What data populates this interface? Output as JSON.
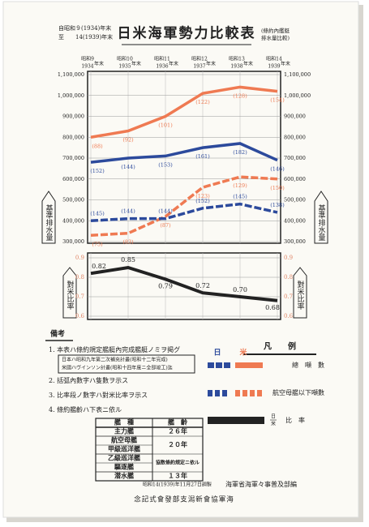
{
  "header": {
    "period_from": "自昭和９(1934)年末",
    "period_to": "至　　14(1939)年末",
    "title": "日米海軍勢力比較表",
    "note_1": "(條約內艦艇",
    "note_2": "排水量比較)"
  },
  "chart_data": [
    {
      "type": "line",
      "categories": [
        "昭和9",
        "昭和10",
        "昭和11",
        "昭和12",
        "昭和13",
        "昭和14"
      ],
      "category_years": [
        "1934",
        "1935",
        "1936",
        "1937",
        "1938",
        "1939"
      ],
      "category_suffix": "年末",
      "y_label": "基準排水量",
      "ylim": [
        300000,
        1100000
      ],
      "yticks": [
        {
          "value": 300000,
          "label": "300,000"
        },
        {
          "value": 400000,
          "label": "400,000"
        },
        {
          "value": 500000,
          "label": "500,000"
        },
        {
          "value": 600000,
          "label": "600,000"
        },
        {
          "value": 700000,
          "label": "700,000"
        },
        {
          "value": 800000,
          "label": "800,000"
        },
        {
          "value": 900000,
          "label": "900,000"
        },
        {
          "value": 1000000,
          "label": "1,000,000"
        },
        {
          "value": 1100000,
          "label": "1,100,000"
        }
      ],
      "grid": true,
      "series": [
        {
          "color": "#ef7a52",
          "dash": false,
          "values": [
            800000,
            830000,
            900000,
            1010000,
            1040000,
            1020000
          ],
          "count_labels": [
            "(88)",
            "(92)",
            "(101)",
            "(122)",
            "(128)",
            "(154)"
          ]
        },
        {
          "color": "#2c4a9c",
          "dash": false,
          "values": [
            680000,
            700000,
            710000,
            750000,
            770000,
            690000
          ],
          "count_labels": [
            "(152)",
            "(144)",
            "(153)",
            "(161)",
            "(182)",
            "(146)"
          ]
        },
        {
          "color": "#ef7a52",
          "dash": true,
          "values": [
            330000,
            340000,
            420000,
            560000,
            610000,
            600000
          ],
          "count_labels": [
            "(75)",
            "(83)",
            "(87)",
            "(123)",
            "(129)",
            "(150)"
          ]
        },
        {
          "color": "#2c4a9c",
          "dash": true,
          "values": [
            400000,
            410000,
            410000,
            460000,
            480000,
            440000
          ],
          "count_labels": [
            "(145)",
            "(144)",
            "(144)",
            "(152)",
            "(145)",
            "(138)"
          ]
        }
      ]
    },
    {
      "type": "line",
      "y_label": "對米比率",
      "ylim": [
        0.6,
        0.9
      ],
      "yticks": [
        0.6,
        0.7,
        0.8,
        0.9
      ],
      "tick_color": "#e0886a",
      "color": "#222222",
      "values": [
        0.82,
        0.85,
        0.79,
        0.72,
        0.7,
        0.68
      ],
      "value_labels": [
        "0.82",
        "0.85",
        "0.79",
        "0.72",
        "0.70",
        "0.68"
      ]
    }
  ],
  "notes": {
    "title": "備考",
    "items": [
      "1. 本表ハ條約規定艦艇內完成艦艇ノミヲ掲グ",
      "2. 括弧內數字ハ隻數ヲ示ス",
      "3. 比率段ノ數字ハ對米比率ヲ示ス",
      "4. 條約艦齡ハ下表ニ依ル"
    ],
    "box": [
      "日本ハ昭和九年第二次補充計畫(昭和十二年完成)",
      "米國ハヴインソン計畫(昭和十四年度ニ全部竣工)迄"
    ]
  },
  "table": {
    "header": [
      "艦　種",
      "艦　齡"
    ],
    "groups": [
      {
        "types": [
          "主力艦"
        ],
        "age": "２６年"
      },
      {
        "types": [
          "航空母艦",
          "甲級巡洋艦"
        ],
        "age": "２０年"
      },
      {
        "types": [
          "乙級巡洋艦",
          "驅逐艦"
        ],
        "age": "協数條約規定ニ依ル"
      },
      {
        "types": [
          "潜水艦"
        ],
        "age": "１３年"
      }
    ]
  },
  "legend": {
    "title": "凡　　例",
    "japan": "日",
    "us": "米",
    "total": "總　噸　數",
    "aux": "航空母艦以下噸數",
    "ratio_num": "日",
    "ratio_den": "米",
    "ratio": "比　率"
  },
  "footer": {
    "date": "昭和14(1939)年11月27日調製",
    "editor": "海軍省海軍々事普及部編",
    "issuer": "念記式會發部支潟新會協軍海"
  }
}
